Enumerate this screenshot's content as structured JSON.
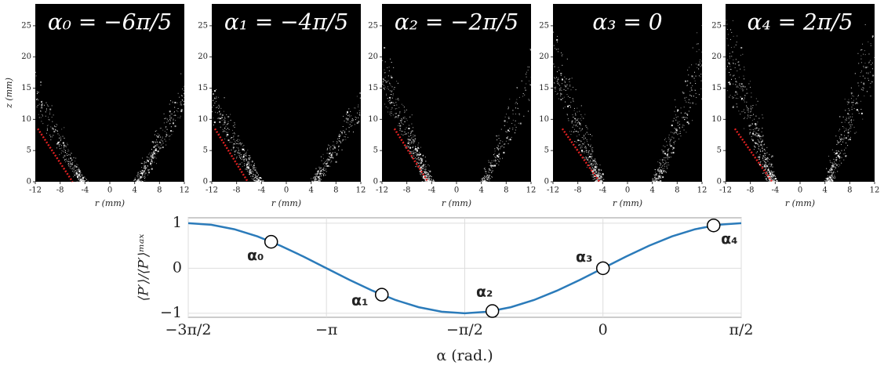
{
  "chart_data": [
    {
      "type": "image",
      "title": "α₀ = −6π/5",
      "xlabel": "r (mm)",
      "ylabel": "z (mm)",
      "xlim": [
        -12,
        12
      ],
      "ylim": [
        0,
        28.5
      ],
      "xticks": [
        -12,
        -8,
        -4,
        0,
        4,
        8,
        12
      ],
      "yticks": [
        0,
        5,
        10,
        15,
        20,
        25
      ],
      "guide": {
        "x": [
          -11.6,
          -6
        ],
        "y": [
          8.5,
          0
        ],
        "color": "#e02020"
      }
    },
    {
      "type": "image",
      "title": "α₁ = −4π/5",
      "xlabel": "r (mm)",
      "xlim": [
        -12,
        12
      ],
      "ylim": [
        0,
        28.5
      ],
      "xticks": [
        -12,
        -8,
        -4,
        0,
        4,
        8,
        12
      ],
      "yticks": [
        0,
        5,
        10,
        15,
        20,
        25
      ],
      "guide": {
        "x": [
          -11.5,
          -6.2
        ],
        "y": [
          8.5,
          0
        ],
        "color": "#e02020"
      }
    },
    {
      "type": "image",
      "title": "α₂ = −2π/5",
      "xlabel": "r (mm)",
      "xlim": [
        -12,
        12
      ],
      "ylim": [
        0,
        28.5
      ],
      "xticks": [
        -12,
        -8,
        -4,
        0,
        4,
        8,
        12
      ],
      "yticks": [
        0,
        5,
        10,
        15,
        20,
        25
      ],
      "guide": {
        "x": [
          -10,
          -4.6
        ],
        "y": [
          8.5,
          0
        ],
        "color": "#e02020"
      }
    },
    {
      "type": "image",
      "title": "α₃ = 0",
      "xlabel": "r (mm)",
      "xlim": [
        -12,
        12
      ],
      "ylim": [
        0,
        28.5
      ],
      "xticks": [
        -12,
        -8,
        -4,
        0,
        4,
        8,
        12
      ],
      "yticks": [
        0,
        5,
        10,
        15,
        20,
        25
      ],
      "guide": {
        "x": [
          -10.5,
          -4.5
        ],
        "y": [
          8.5,
          0
        ],
        "color": "#e02020"
      }
    },
    {
      "type": "image",
      "title": "α₄ = 2π/5",
      "xlabel": "r (mm)",
      "xlim": [
        -12,
        12
      ],
      "ylim": [
        0,
        28.5
      ],
      "xticks": [
        -12,
        -8,
        -4,
        0,
        4,
        8,
        12
      ],
      "yticks": [
        0,
        5,
        10,
        15,
        20,
        25
      ],
      "guide": {
        "x": [
          -10.5,
          -4.5
        ],
        "y": [
          8.5,
          0
        ],
        "color": "#e02020"
      }
    },
    {
      "type": "line",
      "xlabel": "α (rad.)",
      "ylabel": "⟨P′⟩/⟨P′⟩ᵐᵃˣ",
      "xlim": [
        -4.712,
        1.571
      ],
      "ylim": [
        -1.09,
        1.12
      ],
      "xticks": [
        {
          "value": -4.712,
          "label": "−3π/2"
        },
        {
          "value": -3.142,
          "label": "−π"
        },
        {
          "value": -1.571,
          "label": "−π/2"
        },
        {
          "value": 0,
          "label": "0"
        },
        {
          "value": 1.571,
          "label": "π/2"
        }
      ],
      "yticks": [
        {
          "value": -1,
          "label": "−1"
        },
        0,
        1
      ],
      "grid": true,
      "x": [
        -4.712,
        -4.451,
        -4.189,
        -3.927,
        -3.665,
        -3.403,
        -3.142,
        -2.88,
        -2.618,
        -2.356,
        -2.094,
        -1.833,
        -1.571,
        -1.309,
        -1.047,
        -0.785,
        -0.524,
        -0.262,
        0,
        0.262,
        0.524,
        0.785,
        1.047,
        1.309,
        1.571
      ],
      "series": [
        {
          "color": "#2b7bba",
          "values": [
            1,
            0.966,
            0.866,
            0.707,
            0.5,
            0.259,
            0,
            -0.259,
            -0.5,
            -0.707,
            -0.866,
            -0.966,
            -1,
            -0.966,
            -0.866,
            -0.707,
            -0.5,
            -0.259,
            0,
            0.259,
            0.5,
            0.707,
            0.866,
            0.966,
            1
          ]
        }
      ],
      "markers": {
        "x": [
          -3.77,
          -2.513,
          -1.257,
          0,
          1.257
        ],
        "y": [
          0.588,
          -0.588,
          -0.951,
          0,
          0.951
        ],
        "labels": [
          "α₀",
          "α₁",
          "α₂",
          "α₃",
          "α₄"
        ]
      }
    }
  ]
}
